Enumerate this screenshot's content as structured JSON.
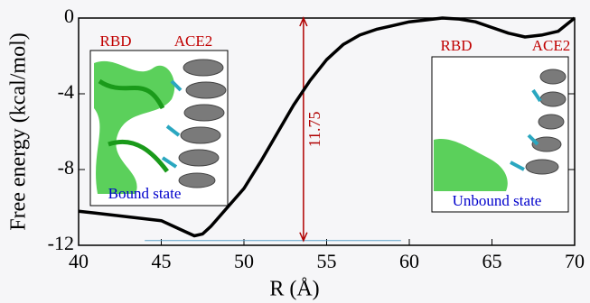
{
  "chart_data": {
    "type": "line",
    "xlabel": "R (Å)",
    "ylabel": "Free energy (kcal/mol)",
    "x": [
      40,
      41,
      42,
      43,
      44,
      45,
      46,
      47,
      47.5,
      48,
      49,
      50,
      51,
      52,
      53,
      54,
      55,
      56,
      57,
      58,
      59,
      60,
      61,
      62,
      63,
      64,
      65,
      66,
      67,
      68,
      69,
      70
    ],
    "values": [
      -10.2,
      -10.3,
      -10.4,
      -10.5,
      -10.6,
      -10.7,
      -11.1,
      -11.5,
      -11.4,
      -11.0,
      -10.0,
      -9.0,
      -7.6,
      -6.1,
      -4.6,
      -3.3,
      -2.2,
      -1.4,
      -0.9,
      -0.6,
      -0.4,
      -0.2,
      -0.1,
      0,
      -0.05,
      -0.2,
      -0.5,
      -0.8,
      -1.0,
      -0.9,
      -0.7,
      0
    ],
    "color": "#000000",
    "xlim": [
      40,
      70
    ],
    "ylim": [
      -12,
      0
    ],
    "xticks": [
      40,
      45,
      50,
      55,
      60,
      65,
      70
    ],
    "yticks": [
      -12,
      -8,
      -4,
      0
    ],
    "arrow": {
      "x": 53.6,
      "from": -11.75,
      "to": 0,
      "label": "11.75",
      "color": "#b00000"
    },
    "baseline": {
      "y": -11.75,
      "x": [
        44,
        59.5
      ],
      "color": "#5aa0c8"
    },
    "insets": [
      {
        "labels": [
          "RBD",
          "ACE2"
        ],
        "caption": "Bound state"
      },
      {
        "labels": [
          "RBD",
          "ACE2"
        ],
        "caption": "Unbound state"
      }
    ]
  }
}
